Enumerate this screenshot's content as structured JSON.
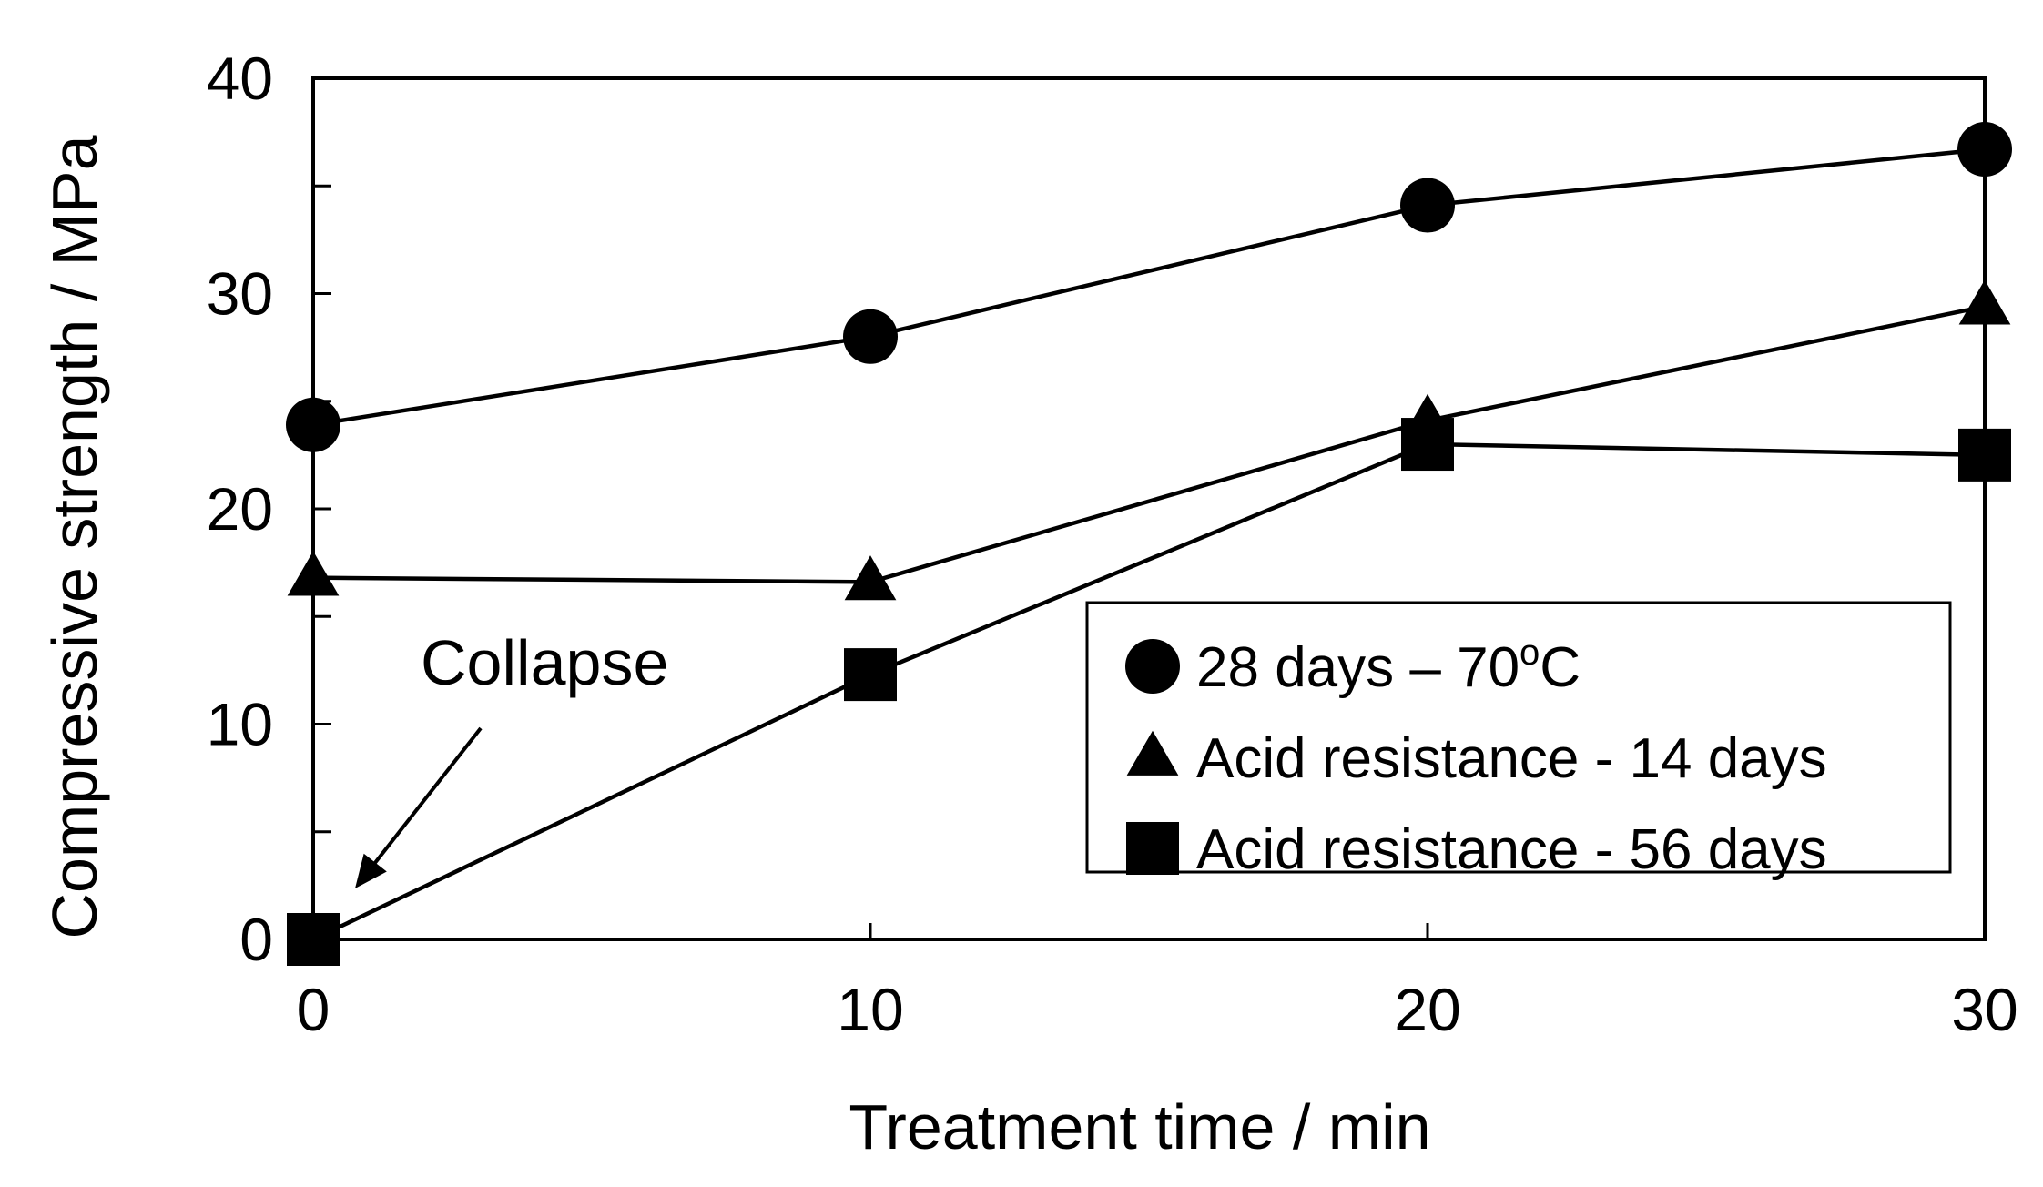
{
  "chart_data": {
    "type": "line",
    "title": "",
    "xlabel": "Treatment time / min",
    "ylabel": "Compressive strength / MPa",
    "xlim": [
      0,
      30
    ],
    "ylim": [
      0,
      40
    ],
    "x_ticks": [
      0,
      10,
      20,
      30
    ],
    "y_ticks": [
      0,
      10,
      20,
      30,
      40
    ],
    "grid": false,
    "legend_position": "bottom-right",
    "series": [
      {
        "name": "28 days – 70°C",
        "name_main": "28 days – 70",
        "name_super": "o",
        "name_tail": "C",
        "marker": "circle",
        "color": "#000000",
        "x": [
          0,
          10,
          20,
          30
        ],
        "y": [
          23.9,
          28.0,
          34.1,
          36.7
        ]
      },
      {
        "name": "Acid resistance - 14 days",
        "marker": "triangle",
        "color": "#000000",
        "x": [
          0,
          10,
          20,
          30
        ],
        "y": [
          16.8,
          16.6,
          24.1,
          29.4
        ]
      },
      {
        "name": "Acid resistance - 56 days",
        "marker": "square",
        "color": "#000000",
        "x": [
          0,
          10,
          20,
          30
        ],
        "y": [
          0,
          12.3,
          23.0,
          22.5
        ]
      }
    ],
    "annotations": [
      {
        "text": "Collapse",
        "points_to": {
          "x": 0,
          "y": 0
        }
      }
    ]
  }
}
